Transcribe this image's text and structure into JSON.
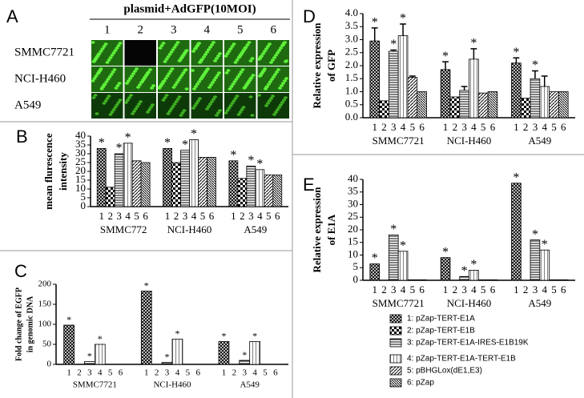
{
  "panel_a": {
    "label": "A",
    "title": "plasmid+AdGFP(10MOI)",
    "columns": [
      "1",
      "2",
      "3",
      "4",
      "5",
      "6"
    ],
    "rows": [
      "SMMC7721",
      "NCI-H460",
      "A549"
    ]
  },
  "chart_data": [
    {
      "type": "bar",
      "panel_label": "B",
      "y_label": [
        "mean flurescence",
        "intensity"
      ],
      "categories": [
        "SMMC772",
        "NCI-H460",
        "A549"
      ],
      "bar_labels": [
        "1",
        "2",
        "3",
        "4",
        "5",
        "6"
      ],
      "star_text": "*",
      "ylim": [
        0,
        40
      ],
      "yticks": [
        0,
        5,
        10,
        15,
        20,
        25,
        30,
        35,
        40
      ],
      "series": [
        {
          "pattern": "crosshatch",
          "values": [
            33,
            33,
            26
          ],
          "stars": [
            true,
            true,
            true
          ]
        },
        {
          "pattern": "checker",
          "values": [
            11,
            25,
            16
          ],
          "stars": [
            false,
            false,
            false
          ]
        },
        {
          "pattern": "hlines",
          "values": [
            30,
            32,
            23
          ],
          "stars": [
            true,
            true,
            true
          ]
        },
        {
          "pattern": "vlines",
          "values": [
            36,
            38,
            21
          ],
          "stars": [
            true,
            true,
            true
          ]
        },
        {
          "pattern": "diag",
          "values": [
            26,
            28,
            18
          ],
          "stars": [
            false,
            false,
            false
          ]
        },
        {
          "pattern": "diag2",
          "values": [
            25,
            28,
            18
          ],
          "stars": [
            false,
            false,
            false
          ]
        }
      ]
    },
    {
      "type": "bar",
      "panel_label": "C",
      "y_label": [
        "Fold change of EGFP",
        "in genomic DNA"
      ],
      "categories": [
        "SMMC7721",
        "NCI-H460",
        "A549"
      ],
      "bar_labels": [
        "1",
        "2",
        "3",
        "4",
        "5",
        "6"
      ],
      "star_text": "*",
      "ylim": [
        0,
        200
      ],
      "yticks": [
        0,
        50,
        100,
        150,
        200
      ],
      "series": [
        {
          "pattern": "crosshatch",
          "values": [
            98,
            183,
            57
          ],
          "stars": [
            true,
            true,
            true
          ]
        },
        {
          "pattern": "checker",
          "values": [
            0,
            0,
            0
          ],
          "stars": [
            false,
            false,
            false
          ]
        },
        {
          "pattern": "hlines",
          "values": [
            7,
            5,
            10
          ],
          "stars": [
            true,
            true,
            true
          ]
        },
        {
          "pattern": "vlines",
          "values": [
            50,
            63,
            57
          ],
          "stars": [
            true,
            true,
            true
          ]
        },
        {
          "pattern": "diag",
          "values": [
            0,
            0,
            0
          ],
          "stars": [
            false,
            false,
            false
          ]
        },
        {
          "pattern": "diag2",
          "values": [
            0,
            0,
            0
          ],
          "stars": [
            false,
            false,
            false
          ]
        }
      ]
    },
    {
      "type": "bar",
      "panel_label": "D",
      "y_label": [
        "Relative expression",
        "of GFP"
      ],
      "categories": [
        "SMMC7721",
        "NCI-H460",
        "A549"
      ],
      "bar_labels": [
        "1",
        "2",
        "3",
        "4",
        "5",
        "6"
      ],
      "star_text": "*",
      "ylim": [
        0,
        4
      ],
      "yticks": [
        {
          "value": 0,
          "label": "0.0"
        },
        0.5,
        {
          "value": 1,
          "label": "1.0"
        },
        1.5,
        {
          "value": 2,
          "label": "2.0"
        },
        2.5,
        {
          "value": 3,
          "label": "3.0"
        },
        3.5,
        {
          "value": 4,
          "label": "4.0"
        }
      ],
      "series": [
        {
          "pattern": "crosshatch",
          "values": [
            2.95,
            1.85,
            2.1
          ],
          "errors": [
            0.5,
            0.3,
            0.2
          ],
          "stars": [
            true,
            true,
            true
          ]
        },
        {
          "pattern": "checker",
          "values": [
            0.65,
            0.8,
            0.75
          ],
          "errors": [
            null,
            null,
            null
          ],
          "stars": [
            false,
            false,
            false
          ]
        },
        {
          "pattern": "hlines",
          "values": [
            2.55,
            1.05,
            1.5
          ],
          "errors": [
            0.05,
            0.15,
            0.3
          ],
          "stars": [
            true,
            false,
            true
          ]
        },
        {
          "pattern": "vlines",
          "values": [
            3.15,
            2.25,
            1.2
          ],
          "errors": [
            0.45,
            0.4,
            0.4
          ],
          "stars": [
            true,
            true,
            false
          ]
        },
        {
          "pattern": "diag",
          "values": [
            1.55,
            0.95,
            1.0
          ],
          "errors": [
            0.05,
            null,
            null
          ],
          "stars": [
            false,
            false,
            false
          ]
        },
        {
          "pattern": "diag2",
          "values": [
            1.0,
            1.0,
            1.0
          ],
          "errors": [
            null,
            null,
            null
          ],
          "stars": [
            false,
            false,
            false
          ]
        }
      ]
    },
    {
      "type": "bar",
      "panel_label": "E",
      "y_label": [
        "Relative expression",
        "of E1A"
      ],
      "categories": [
        "SMMC7721",
        "NCI-H460",
        "A549"
      ],
      "bar_labels": [
        "1",
        "2",
        "3",
        "4",
        "5",
        "6"
      ],
      "star_text": "*",
      "ylim": [
        0,
        40
      ],
      "yticks": [
        0,
        5,
        10,
        15,
        20,
        25,
        30,
        35,
        40
      ],
      "series": [
        {
          "name": "1: pZap-TERT-E1A",
          "pattern": "crosshatch",
          "values": [
            6.5,
            9,
            38.5
          ],
          "stars": [
            true,
            true,
            true
          ]
        },
        {
          "name": "2: pZap-TERT-E1B",
          "pattern": "checker",
          "values": [
            0,
            0,
            0
          ],
          "stars": [
            false,
            false,
            false
          ]
        },
        {
          "name": "3: pZap-TERT-E1A-IRES-E1B19K",
          "pattern": "hlines",
          "values": [
            18,
            1.5,
            16
          ],
          "stars": [
            true,
            true,
            true
          ]
        },
        {
          "name": "4: pZap-TERT-E1A-TERT-E1B",
          "pattern": "vlines",
          "values": [
            11.5,
            4,
            12
          ],
          "stars": [
            true,
            true,
            true
          ]
        },
        {
          "name": "5: pBHGLox(dE1,E3)",
          "pattern": "diag",
          "values": [
            0.2,
            0.2,
            0.2
          ],
          "stars": [
            false,
            false,
            false
          ]
        },
        {
          "name": "6: pZap",
          "pattern": "diag2",
          "values": [
            0.2,
            0.2,
            0.2
          ],
          "stars": [
            false,
            false,
            false
          ]
        }
      ]
    }
  ]
}
